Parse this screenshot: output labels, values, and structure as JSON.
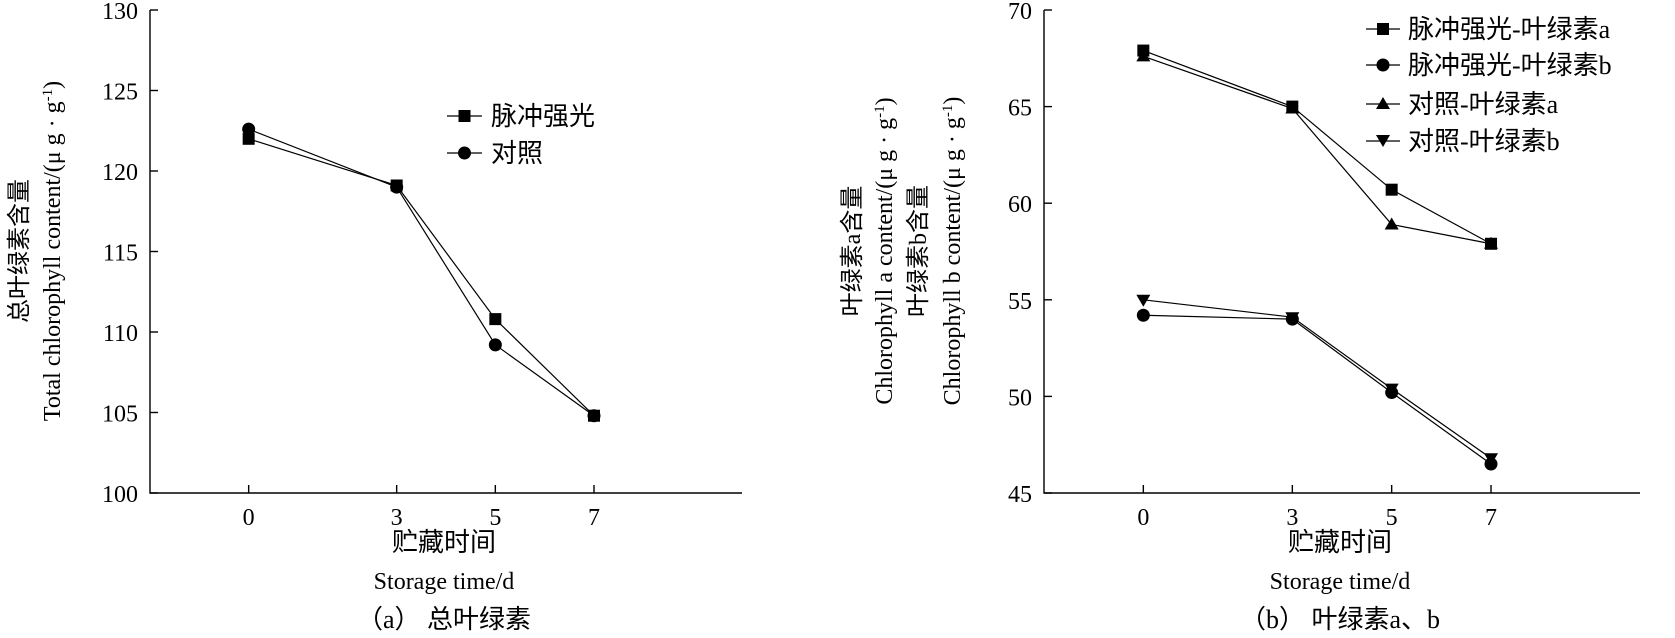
{
  "chart_data": [
    {
      "type": "line",
      "caption": "（a） 总叶绿素",
      "xlabel_cn": "贮藏时间",
      "xlabel_en": "Storage time/d",
      "ylabel_cn": "总叶绿素含量",
      "ylabel_en": "Total chlorophyll content/(μ g · g",
      "ylabel_sup": "-1",
      "ylabel_close": ")",
      "x": [
        0,
        3,
        5,
        7
      ],
      "xticks": [
        "0",
        "3",
        "5",
        "7"
      ],
      "yticks": [
        "100",
        "105",
        "110",
        "115",
        "120",
        "125",
        "130"
      ],
      "ylim": [
        100,
        130
      ],
      "xlim": [
        -2,
        10
      ],
      "legend_position": "upper-middle",
      "series": [
        {
          "name": "脉冲强光",
          "marker": "square",
          "values": [
            122.0,
            119.1,
            110.8,
            104.8
          ]
        },
        {
          "name": "对照",
          "marker": "circle",
          "values": [
            122.6,
            119.0,
            109.2,
            104.8
          ]
        }
      ]
    },
    {
      "type": "line",
      "caption": "（b） 叶绿素a、b",
      "xlabel_cn": "贮藏时间",
      "xlabel_en": "Storage time/d",
      "ylabel_a_cn": "叶绿素a含量",
      "ylabel_a_en": "Chlorophyll a content/(μ g · g",
      "ylabel_b_cn": "叶绿素b含量",
      "ylabel_b_en": "Chlorophyll b content/(μ g · g",
      "ylabel_sup": "-1",
      "ylabel_close": ")",
      "x": [
        0,
        3,
        5,
        7
      ],
      "xticks": [
        "0",
        "3",
        "5",
        "7"
      ],
      "yticks": [
        "45",
        "50",
        "55",
        "60",
        "65",
        "70"
      ],
      "ylim": [
        45,
        70
      ],
      "xlim": [
        -2,
        10
      ],
      "legend_position": "top-right",
      "series": [
        {
          "name": "脉冲强光-叶绿素a",
          "marker": "square",
          "values": [
            67.9,
            65.0,
            60.7,
            57.9
          ]
        },
        {
          "name": "脉冲强光-叶绿素b",
          "marker": "circle",
          "values": [
            54.2,
            54.0,
            50.2,
            46.5
          ]
        },
        {
          "name": "对照-叶绿素a",
          "marker": "triangle-up",
          "values": [
            67.6,
            64.9,
            58.9,
            57.9
          ]
        },
        {
          "name": "对照-叶绿素b",
          "marker": "triangle-down",
          "values": [
            55.0,
            54.1,
            50.4,
            46.8
          ]
        }
      ]
    }
  ]
}
